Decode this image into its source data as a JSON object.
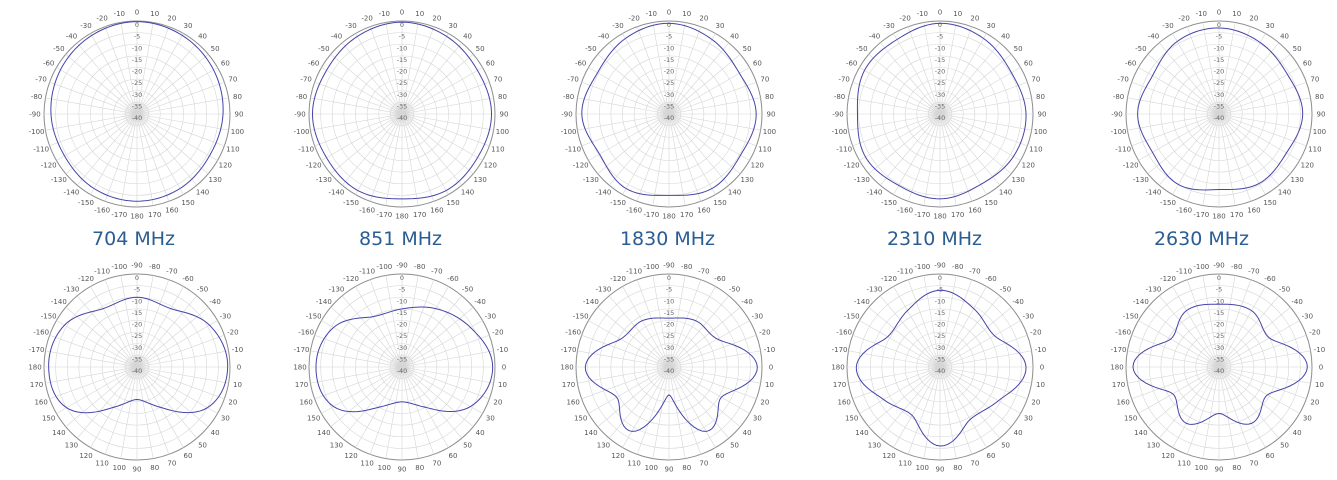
{
  "colors": {
    "pattern": "#4444aa",
    "grid": "#d6d6d6",
    "label": "#2a5d93"
  },
  "frequency_labels": [
    "704 MHz",
    "851 MHz",
    "1830 MHz",
    "2310 MHz",
    "2630 MHz"
  ],
  "chart_data": [
    {
      "type": "polar-line",
      "plane": "horizontal",
      "frequency": "704 MHz",
      "r_range": [
        -40,
        0
      ],
      "r_ticks": [
        0,
        -5,
        -10,
        -15,
        -20,
        -25,
        -30,
        -35,
        -40
      ],
      "angle_ticks": [
        0,
        10,
        20,
        30,
        40,
        50,
        60,
        70,
        80,
        90,
        100,
        110,
        120,
        130,
        140,
        150,
        160,
        170,
        180,
        -170,
        -160,
        -150,
        -140,
        -130,
        -120,
        -110,
        -100,
        -90,
        -80,
        -70,
        -60,
        -50,
        -40,
        -30,
        -20,
        -10
      ],
      "angles": [
        0,
        30,
        60,
        90,
        120,
        150,
        180,
        210,
        240,
        270,
        300,
        330
      ],
      "values": [
        -0.3,
        -1.0,
        -2.0,
        -3.0,
        -4.0,
        -3.0,
        -2.5,
        -3.0,
        -4.0,
        -3.0,
        -2.0,
        -1.0
      ]
    },
    {
      "type": "polar-line",
      "plane": "horizontal",
      "frequency": "851 MHz",
      "r_range": [
        -40,
        0
      ],
      "r_ticks": [
        0,
        -5,
        -10,
        -15,
        -20,
        -25,
        -30,
        -35,
        -40
      ],
      "angle_ticks": [
        0,
        10,
        20,
        30,
        40,
        50,
        60,
        70,
        80,
        90,
        100,
        110,
        120,
        130,
        140,
        150,
        160,
        170,
        180,
        -170,
        -160,
        -150,
        -140,
        -130,
        -120,
        -110,
        -100,
        -90,
        -80,
        -70,
        -60,
        -50,
        -40,
        -30,
        -20,
        -10
      ],
      "angles": [
        0,
        30,
        60,
        90,
        120,
        150,
        180,
        210,
        240,
        270,
        300,
        330
      ],
      "values": [
        -0.5,
        -1.5,
        -2.5,
        -1.5,
        -2.5,
        -2.0,
        -3.5,
        -2.0,
        -2.5,
        -1.5,
        -2.5,
        -1.5
      ]
    },
    {
      "type": "polar-line",
      "plane": "horizontal",
      "frequency": "1830 MHz",
      "r_range": [
        -40,
        0
      ],
      "r_ticks": [
        0,
        -5,
        -10,
        -15,
        -20,
        -25,
        -30,
        -35,
        -40
      ],
      "angle_ticks": [
        0,
        10,
        20,
        30,
        40,
        50,
        60,
        70,
        80,
        90,
        100,
        110,
        120,
        130,
        140,
        150,
        160,
        170,
        180,
        -170,
        -160,
        -150,
        -140,
        -130,
        -120,
        -110,
        -100,
        -90,
        -80,
        -70,
        -60,
        -50,
        -40,
        -30,
        -20,
        -10
      ],
      "angles": [
        0,
        30,
        60,
        90,
        120,
        150,
        180,
        210,
        240,
        270,
        300,
        330
      ],
      "values": [
        -1.0,
        -3.0,
        -5.0,
        -2.5,
        -4.5,
        -3.0,
        -5.0,
        -3.0,
        -5.5,
        -2.5,
        -4.5,
        -2.5
      ]
    },
    {
      "type": "polar-line",
      "plane": "horizontal",
      "frequency": "2310 MHz",
      "r_range": [
        -40,
        0
      ],
      "r_ticks": [
        0,
        -5,
        -10,
        -15,
        -20,
        -25,
        -30,
        -35,
        -40
      ],
      "angle_ticks": [
        0,
        10,
        20,
        30,
        40,
        50,
        60,
        70,
        80,
        90,
        100,
        110,
        120,
        130,
        140,
        150,
        160,
        170,
        180,
        -170,
        -160,
        -150,
        -140,
        -130,
        -120,
        -110,
        -100,
        -90,
        -80,
        -70,
        -60,
        -50,
        -40,
        -30,
        -20,
        -10
      ],
      "angles": [
        0,
        30,
        60,
        90,
        120,
        150,
        180,
        210,
        240,
        270,
        300,
        330
      ],
      "values": [
        -1.0,
        -2.5,
        -4.5,
        -3.0,
        -3.5,
        -5.0,
        -3.5,
        -4.5,
        -3.0,
        -4.5,
        -2.5,
        -3.0
      ]
    },
    {
      "type": "polar-line",
      "plane": "horizontal",
      "frequency": "2630 MHz",
      "r_range": [
        -40,
        0
      ],
      "r_ticks": [
        0,
        -5,
        -10,
        -15,
        -20,
        -25,
        -30,
        -35,
        -40
      ],
      "angle_ticks": [
        0,
        10,
        20,
        30,
        40,
        50,
        60,
        70,
        80,
        90,
        100,
        110,
        120,
        130,
        140,
        150,
        160,
        170,
        180,
        -170,
        -160,
        -150,
        -140,
        -130,
        -120,
        -110,
        -100,
        -90,
        -80,
        -70,
        -60,
        -50,
        -40,
        -30,
        -20,
        -10
      ],
      "angles": [
        0,
        30,
        60,
        90,
        120,
        150,
        180,
        210,
        240,
        270,
        300,
        330
      ],
      "values": [
        -3.0,
        -4.5,
        -6.0,
        -4.0,
        -6.5,
        -5.5,
        -7.5,
        -5.0,
        -7.0,
        -5.0,
        -7.0,
        -4.0
      ]
    },
    {
      "type": "polar-line",
      "plane": "vertical",
      "frequency": "704 MHz",
      "r_range": [
        -40,
        0
      ],
      "r_ticks": [
        0,
        -5,
        -10,
        -15,
        -20,
        -25,
        -30,
        -35,
        -40
      ],
      "angle_ticks": [
        -90,
        -80,
        -70,
        -60,
        -50,
        -40,
        -30,
        -20,
        -10,
        0,
        10,
        20,
        30,
        40,
        50,
        60,
        70,
        80,
        90,
        100,
        110,
        120,
        130,
        140,
        150,
        160,
        170,
        180,
        -170,
        -160,
        -150,
        -140,
        -130,
        -120,
        -110,
        -100
      ],
      "angles": [
        -90,
        -60,
        -30,
        0,
        30,
        60,
        90,
        120,
        150,
        180,
        -150,
        -120
      ],
      "values": [
        -10.0,
        -11.0,
        -4.0,
        -1.0,
        -5.0,
        -20.0,
        -26.0,
        -20.0,
        -5.0,
        -2.0,
        -4.0,
        -11.0
      ]
    },
    {
      "type": "polar-line",
      "plane": "vertical",
      "frequency": "851 MHz",
      "r_range": [
        -40,
        0
      ],
      "r_ticks": [
        0,
        -5,
        -10,
        -15,
        -20,
        -25,
        -30,
        -35,
        -40
      ],
      "angle_ticks": [
        -90,
        -80,
        -70,
        -60,
        -50,
        -40,
        -30,
        -20,
        -10,
        0,
        10,
        20,
        30,
        40,
        50,
        60,
        70,
        80,
        90,
        100,
        110,
        120,
        130,
        140,
        150,
        160,
        170,
        180,
        -170,
        -160,
        -150,
        -140,
        -130,
        -120,
        -110,
        -100
      ],
      "angles": [
        -90,
        -60,
        -30,
        0,
        30,
        60,
        90,
        120,
        150,
        180,
        -150,
        -120
      ],
      "values": [
        -15.0,
        -11.0,
        -6.0,
        -1.0,
        -6.0,
        -20.0,
        -25.0,
        -20.0,
        -6.0,
        -3.0,
        -6.0,
        -15.0
      ]
    },
    {
      "type": "polar-line",
      "plane": "vertical",
      "frequency": "1830 MHz",
      "r_range": [
        -40,
        0
      ],
      "r_ticks": [
        0,
        -5,
        -10,
        -15,
        -20,
        -25,
        -30,
        -35,
        -40
      ],
      "angle_ticks": [
        -90,
        -80,
        -70,
        -60,
        -50,
        -40,
        -30,
        -20,
        -10,
        0,
        10,
        20,
        30,
        40,
        50,
        60,
        70,
        80,
        90,
        100,
        110,
        120,
        130,
        140,
        150,
        160,
        170,
        180,
        -170,
        -160,
        -150,
        -140,
        -130,
        -120,
        -110,
        -100
      ],
      "angles": [
        -90,
        -60,
        -30,
        0,
        30,
        60,
        90,
        120,
        150,
        180,
        -150,
        -120
      ],
      "values": [
        -19.0,
        -17.0,
        -16.0,
        -2.0,
        -14.0,
        -8.0,
        -28.0,
        -8.0,
        -14.0,
        -4.0,
        -16.0,
        -17.0
      ]
    },
    {
      "type": "polar-line",
      "plane": "vertical",
      "frequency": "2310 MHz",
      "r_range": [
        -40,
        0
      ],
      "r_ticks": [
        0,
        -5,
        -10,
        -15,
        -20,
        -25,
        -30,
        -35,
        -40
      ],
      "angle_ticks": [
        -90,
        -80,
        -70,
        -60,
        -50,
        -40,
        -30,
        -20,
        -10,
        0,
        10,
        20,
        30,
        40,
        50,
        60,
        70,
        80,
        90,
        100,
        110,
        120,
        130,
        140,
        150,
        160,
        170,
        180,
        -170,
        -160,
        -150,
        -140,
        -130,
        -120,
        -110,
        -100
      ],
      "angles": [
        -90,
        -60,
        -30,
        0,
        30,
        60,
        90,
        120,
        150,
        180,
        -150,
        -120
      ],
      "values": [
        -7.0,
        -11.0,
        -13.0,
        -3.0,
        -11.0,
        -14.0,
        -6.0,
        -16.0,
        -12.0,
        -4.0,
        -14.0,
        -12.0
      ]
    },
    {
      "type": "polar-line",
      "plane": "vertical",
      "frequency": "2630 MHz",
      "r_range": [
        -40,
        0
      ],
      "r_ticks": [
        0,
        -5,
        -10,
        -15,
        -20,
        -25,
        -30,
        -35,
        -40
      ],
      "angle_ticks": [
        -90,
        -80,
        -70,
        -60,
        -50,
        -40,
        -30,
        -20,
        -10,
        0,
        10,
        20,
        30,
        40,
        50,
        60,
        70,
        80,
        90,
        100,
        110,
        120,
        130,
        140,
        150,
        160,
        170,
        180,
        -170,
        -160,
        -150,
        -140,
        -130,
        -120,
        -110,
        -100
      ],
      "angles": [
        -90,
        -60,
        -30,
        0,
        30,
        60,
        90,
        120,
        150,
        180,
        -150,
        -120
      ],
      "values": [
        -13.0,
        -12.0,
        -15.0,
        -2.0,
        -16.0,
        -12.0,
        -20.0,
        -12.0,
        -17.0,
        -3.0,
        -16.0,
        -12.0
      ]
    }
  ]
}
